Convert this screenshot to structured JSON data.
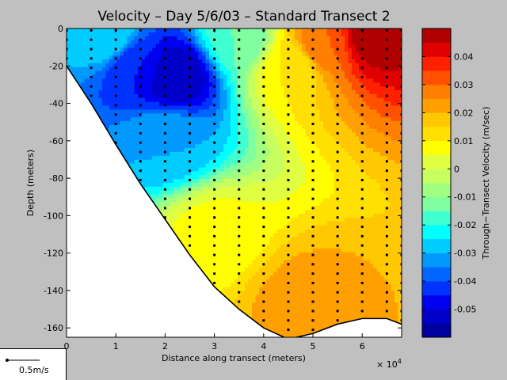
{
  "chart_data": {
    "type": "heatmap",
    "subtype": "filled-contour section with station sample points",
    "title": "Velocity – Day 5/6/03 – Standard Transect 2",
    "xlabel": "Distance along transect (meters)",
    "x_multiplier": "× 10",
    "x_multiplier_exp": "4",
    "ylabel": "Depth (meters)",
    "colorbar_label": "Through−Transect Velocity (m/sec)",
    "xlim": [
      0,
      68000
    ],
    "ylim": [
      -165,
      0
    ],
    "x_ticks": [
      0,
      1,
      2,
      3,
      4,
      5,
      6
    ],
    "y_ticks": [
      0,
      -20,
      -40,
      -60,
      -80,
      -100,
      -120,
      -140,
      -160
    ],
    "colorbar_range": [
      -0.06,
      0.05
    ],
    "colorbar_ticks": [
      0.04,
      0.03,
      0.02,
      0.01,
      0,
      -0.01,
      -0.02,
      -0.03,
      -0.04,
      -0.05
    ],
    "color_levels": [
      {
        "from": -0.06,
        "to": -0.055,
        "color": "#0000a0"
      },
      {
        "from": -0.055,
        "to": -0.05,
        "color": "#0000c8"
      },
      {
        "from": -0.05,
        "to": -0.045,
        "color": "#0000f0"
      },
      {
        "from": -0.045,
        "to": -0.04,
        "color": "#0033ff"
      },
      {
        "from": -0.04,
        "to": -0.035,
        "color": "#0066ff"
      },
      {
        "from": -0.035,
        "to": -0.03,
        "color": "#0099ff"
      },
      {
        "from": -0.03,
        "to": -0.025,
        "color": "#00ccff"
      },
      {
        "from": -0.025,
        "to": -0.02,
        "color": "#00ffff"
      },
      {
        "from": -0.02,
        "to": -0.015,
        "color": "#40ffd0"
      },
      {
        "from": -0.015,
        "to": -0.01,
        "color": "#80ffa0"
      },
      {
        "from": -0.01,
        "to": -0.005,
        "color": "#a0ff80"
      },
      {
        "from": -0.005,
        "to": 0,
        "color": "#c8ff60"
      },
      {
        "from": 0,
        "to": 0.005,
        "color": "#e0ff40"
      },
      {
        "from": 0.005,
        "to": 0.01,
        "color": "#ffff00"
      },
      {
        "from": 0.01,
        "to": 0.015,
        "color": "#ffe000"
      },
      {
        "from": 0.015,
        "to": 0.02,
        "color": "#ffc800"
      },
      {
        "from": 0.02,
        "to": 0.025,
        "color": "#ffa000"
      },
      {
        "from": 0.025,
        "to": 0.03,
        "color": "#ff8000"
      },
      {
        "from": 0.03,
        "to": 0.035,
        "color": "#ff5000"
      },
      {
        "from": 0.035,
        "to": 0.04,
        "color": "#ff2000"
      },
      {
        "from": 0.04,
        "to": 0.045,
        "color": "#e00000"
      },
      {
        "from": 0.045,
        "to": 0.05,
        "color": "#b00000"
      }
    ],
    "seabed_profile": [
      {
        "x": 0,
        "depth": -20
      },
      {
        "x": 5000,
        "depth": -40
      },
      {
        "x": 10000,
        "depth": -62
      },
      {
        "x": 15000,
        "depth": -83
      },
      {
        "x": 20000,
        "depth": -102
      },
      {
        "x": 25000,
        "depth": -121
      },
      {
        "x": 30000,
        "depth": -138
      },
      {
        "x": 35000,
        "depth": -150
      },
      {
        "x": 40000,
        "depth": -160
      },
      {
        "x": 45000,
        "depth": -166
      },
      {
        "x": 50000,
        "depth": -163
      },
      {
        "x": 55000,
        "depth": -158
      },
      {
        "x": 60000,
        "depth": -155
      },
      {
        "x": 65000,
        "depth": -155
      },
      {
        "x": 68000,
        "depth": -158
      }
    ],
    "velocity_features": [
      {
        "x": 22000,
        "depth": -25,
        "value": -0.055
      },
      {
        "x": 14000,
        "depth": -20,
        "value": -0.045
      },
      {
        "x": 8000,
        "depth": -5,
        "value": -0.025
      },
      {
        "x": 20000,
        "depth": -60,
        "value": -0.03
      },
      {
        "x": 35000,
        "depth": -5,
        "value": -0.015
      },
      {
        "x": 62000,
        "depth": -5,
        "value": 0.048
      },
      {
        "x": 52000,
        "depth": -10,
        "value": 0.03
      },
      {
        "x": 46000,
        "depth": -20,
        "value": 0.01
      },
      {
        "x": 48000,
        "depth": -145,
        "value": 0.022
      },
      {
        "x": 30000,
        "depth": -110,
        "value": 0.007
      }
    ],
    "stations_x": [
      0,
      5000,
      10000,
      15000,
      20000,
      25000,
      30000,
      35000,
      40000,
      45000,
      50000,
      55000,
      60000,
      65000,
      68000
    ],
    "sample_dz": 5
  },
  "scale_legend": {
    "label": "0.5m/s"
  }
}
